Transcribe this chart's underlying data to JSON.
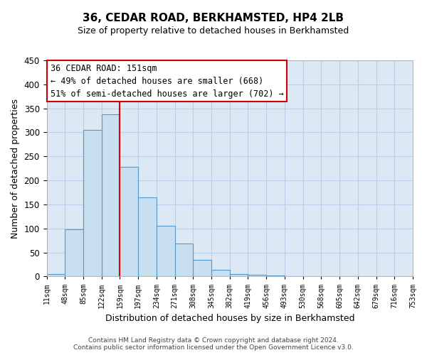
{
  "title": "36, CEDAR ROAD, BERKHAMSTED, HP4 2LB",
  "subtitle": "Size of property relative to detached houses in Berkhamsted",
  "xlabel": "Distribution of detached houses by size in Berkhamsted",
  "ylabel": "Number of detached properties",
  "bar_color": "#c8dff0",
  "bar_edge_color": "#5599cc",
  "vline_color": "#dd0000",
  "vline_x": 4,
  "annotation_text": "36 CEDAR ROAD: 151sqm\n← 49% of detached houses are smaller (668)\n51% of semi-detached houses are larger (702) →",
  "annotation_box_color": "white",
  "annotation_box_edge_color": "#cc0000",
  "bin_labels": [
    "11sqm",
    "48sqm",
    "85sqm",
    "122sqm",
    "159sqm",
    "197sqm",
    "234sqm",
    "271sqm",
    "308sqm",
    "345sqm",
    "382sqm",
    "419sqm",
    "456sqm",
    "493sqm",
    "530sqm",
    "568sqm",
    "605sqm",
    "642sqm",
    "679sqm",
    "716sqm",
    "753sqm"
  ],
  "bar_heights": [
    5,
    98,
    305,
    338,
    228,
    165,
    105,
    69,
    34,
    14,
    5,
    3,
    2,
    1,
    1,
    0,
    0,
    0,
    0,
    0,
    2
  ],
  "ylim": [
    0,
    450
  ],
  "yticks": [
    0,
    50,
    100,
    150,
    200,
    250,
    300,
    350,
    400,
    450
  ],
  "grid_color": "#b8d0e8",
  "background_color": "#dce8f4",
  "footer_text": "Contains HM Land Registry data © Crown copyright and database right 2024.\nContains public sector information licensed under the Open Government Licence v3.0.",
  "fig_width": 6.0,
  "fig_height": 5.0,
  "dpi": 100
}
